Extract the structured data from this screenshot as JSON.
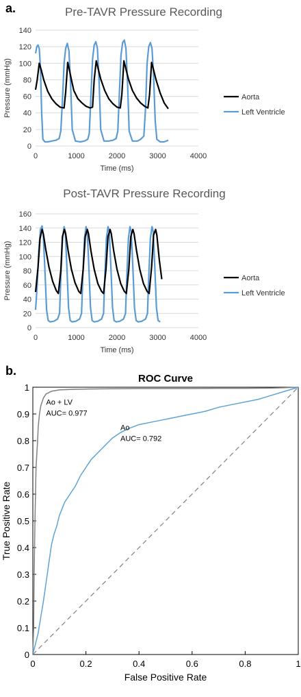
{
  "panels": {
    "a_label": "a.",
    "b_label": "b."
  },
  "colors": {
    "aorta": "#000000",
    "lv": "#5b9bd5",
    "roc_combined": "#808080",
    "roc_ao": "#5ba3d9",
    "grid": "#d9d9d9"
  },
  "chart_data": [
    {
      "type": "line",
      "title": "Pre-TAVR Pressure Recording",
      "xlabel": "Time (ms)",
      "ylabel": "Pressure (mmHg)",
      "xlim": [
        0,
        4000
      ],
      "ylim": [
        0,
        140
      ],
      "xticks": [
        "0",
        "1000",
        "2000",
        "3000",
        "4000"
      ],
      "yticks": [
        "0",
        "20",
        "40",
        "60",
        "80",
        "100",
        "120",
        "140"
      ],
      "grid": true,
      "legend": "right",
      "series": [
        {
          "name": "Aorta",
          "color": "#000000",
          "x": [
            0,
            40,
            90,
            140,
            200,
            300,
            400,
            500,
            600,
            700,
            740,
            790,
            830,
            880,
            940,
            1040,
            1140,
            1240,
            1340,
            1400,
            1440,
            1490,
            1540,
            1600,
            1700,
            1800,
            1900,
            2000,
            2080,
            2120,
            2170,
            2220,
            2280,
            2380,
            2480,
            2580,
            2680,
            2760,
            2800,
            2850,
            2900,
            2960,
            3060,
            3160,
            3260
          ],
          "y": [
            68,
            80,
            100,
            92,
            80,
            66,
            57,
            51,
            47,
            46,
            65,
            101,
            92,
            80,
            67,
            57,
            52,
            48,
            46,
            47,
            80,
            103,
            93,
            81,
            67,
            57,
            51,
            47,
            46,
            62,
            103,
            93,
            81,
            67,
            58,
            52,
            48,
            46,
            62,
            101,
            92,
            80,
            64,
            52,
            45
          ]
        },
        {
          "name": "Left Ventricle",
          "color": "#5b9bd5",
          "x": [
            0,
            30,
            60,
            90,
            120,
            150,
            180,
            230,
            300,
            400,
            500,
            580,
            620,
            660,
            700,
            740,
            780,
            820,
            860,
            900,
            980,
            1100,
            1200,
            1280,
            1320,
            1360,
            1400,
            1440,
            1480,
            1520,
            1560,
            1600,
            1680,
            1800,
            1900,
            1980,
            2020,
            2060,
            2100,
            2140,
            2180,
            2220,
            2260,
            2300,
            2380,
            2500,
            2580,
            2660,
            2700,
            2740,
            2780,
            2820,
            2860,
            2900,
            2940,
            2980,
            3060,
            3160,
            3260
          ],
          "y": [
            112,
            120,
            122,
            118,
            95,
            40,
            8,
            5,
            5,
            6,
            7,
            9,
            18,
            55,
            100,
            118,
            124,
            115,
            75,
            20,
            6,
            5,
            6,
            8,
            15,
            60,
            105,
            122,
            126,
            118,
            80,
            20,
            6,
            6,
            7,
            9,
            18,
            65,
            110,
            125,
            128,
            118,
            75,
            18,
            6,
            6,
            8,
            12,
            45,
            100,
            120,
            125,
            118,
            85,
            30,
            8,
            5,
            5,
            7
          ]
        }
      ]
    },
    {
      "type": "line",
      "title": "Post-TAVR Pressure Recording",
      "xlabel": "Time (ms)",
      "ylabel": "Pressure (mmHg)",
      "xlim": [
        0,
        4000
      ],
      "ylim": [
        0,
        160
      ],
      "xticks": [
        "0",
        "1000",
        "2000",
        "3000",
        "4000"
      ],
      "yticks": [
        "0",
        "20",
        "40",
        "60",
        "80",
        "100",
        "120",
        "140",
        "160"
      ],
      "grid": true,
      "legend": "right",
      "series": [
        {
          "name": "Aorta",
          "color": "#000000",
          "x": [
            0,
            60,
            110,
            160,
            190,
            250,
            330,
            420,
            510,
            560,
            620,
            660,
            710,
            740,
            800,
            880,
            970,
            1060,
            1110,
            1170,
            1220,
            1270,
            1300,
            1360,
            1440,
            1530,
            1620,
            1670,
            1730,
            1780,
            1830,
            1860,
            1920,
            2000,
            2090,
            2180,
            2230,
            2290,
            2340,
            2390,
            2420,
            2480,
            2560,
            2650,
            2740,
            2790,
            2850,
            2900,
            2950,
            2980,
            3040,
            3100
          ],
          "y": [
            50,
            85,
            125,
            138,
            132,
            110,
            85,
            65,
            52,
            48,
            80,
            128,
            138,
            132,
            108,
            82,
            63,
            51,
            48,
            82,
            128,
            138,
            132,
            108,
            82,
            62,
            51,
            48,
            82,
            128,
            138,
            132,
            108,
            82,
            62,
            51,
            48,
            82,
            128,
            138,
            132,
            108,
            82,
            62,
            51,
            48,
            85,
            130,
            138,
            130,
            95,
            68
          ]
        },
        {
          "name": "Left Ventricle",
          "color": "#5b9bd5",
          "x": [
            0,
            40,
            80,
            120,
            160,
            190,
            230,
            270,
            310,
            360,
            450,
            540,
            590,
            620,
            660,
            700,
            730,
            770,
            810,
            850,
            900,
            990,
            1080,
            1130,
            1160,
            1200,
            1240,
            1270,
            1310,
            1350,
            1390,
            1440,
            1530,
            1620,
            1670,
            1700,
            1740,
            1780,
            1810,
            1850,
            1890,
            1930,
            1980,
            2070,
            2160,
            2210,
            2240,
            2280,
            2320,
            2350,
            2390,
            2430,
            2470,
            2520,
            2610,
            2700,
            2750,
            2780,
            2820,
            2860,
            2890,
            2930,
            2970,
            3010,
            3060
          ],
          "y": [
            25,
            60,
            110,
            138,
            143,
            130,
            80,
            25,
            10,
            8,
            9,
            12,
            20,
            70,
            125,
            142,
            135,
            85,
            28,
            10,
            8,
            9,
            12,
            20,
            70,
            125,
            142,
            135,
            85,
            28,
            10,
            8,
            9,
            12,
            20,
            70,
            125,
            142,
            135,
            85,
            28,
            10,
            8,
            9,
            12,
            20,
            70,
            125,
            142,
            135,
            85,
            28,
            10,
            8,
            9,
            12,
            20,
            70,
            125,
            142,
            135,
            85,
            28,
            10,
            8
          ]
        }
      ]
    },
    {
      "type": "line",
      "title": "ROC Curve",
      "xlabel": "False Positive Rate",
      "ylabel": "True Positive Rate",
      "xlim": [
        0,
        1
      ],
      "ylim": [
        0,
        1
      ],
      "xticks": [
        "0",
        "0.2",
        "0.4",
        "0.6",
        "0.8",
        "1"
      ],
      "yticks": [
        "0",
        "0.1",
        "0.2",
        "0.3",
        "0.4",
        "0.5",
        "0.6",
        "0.7",
        "0.8",
        "0.9",
        "1"
      ],
      "grid": false,
      "annotations": [
        {
          "lines": [
            "Ao + LV",
            "AUC= 0.977"
          ],
          "x": 0.05,
          "y": 0.935
        },
        {
          "lines": [
            "Ao",
            "AUC= 0.792"
          ],
          "x": 0.33,
          "y": 0.84
        }
      ],
      "series": [
        {
          "color": "#808080",
          "x": [
            0,
            0.003,
            0.005,
            0.008,
            0.01,
            0.012,
            0.015,
            0.018,
            0.02,
            0.025,
            0.03,
            0.04,
            0.05,
            0.07,
            0.1,
            0.15,
            0.2,
            0.3,
            0.4,
            0.5,
            0.6,
            0.7,
            0.8,
            0.9,
            0.95,
            1
          ],
          "y": [
            0,
            0.1,
            0.3,
            0.5,
            0.6,
            0.7,
            0.75,
            0.8,
            0.85,
            0.9,
            0.93,
            0.96,
            0.975,
            0.985,
            0.99,
            0.992,
            0.993,
            0.994,
            0.995,
            0.995,
            0.995,
            0.996,
            0.996,
            0.997,
            0.998,
            1
          ]
        },
        {
          "color": "#5ba3d9",
          "x": [
            0,
            0.005,
            0.01,
            0.02,
            0.03,
            0.04,
            0.05,
            0.06,
            0.07,
            0.08,
            0.09,
            0.1,
            0.12,
            0.14,
            0.16,
            0.18,
            0.2,
            0.22,
            0.25,
            0.28,
            0.3,
            0.33,
            0.36,
            0.4,
            0.45,
            0.5,
            0.55,
            0.6,
            0.65,
            0.7,
            0.75,
            0.8,
            0.85,
            0.9,
            0.95,
            1
          ],
          "y": [
            0,
            0.02,
            0.04,
            0.08,
            0.14,
            0.2,
            0.27,
            0.34,
            0.41,
            0.45,
            0.48,
            0.52,
            0.57,
            0.6,
            0.63,
            0.67,
            0.7,
            0.73,
            0.76,
            0.79,
            0.81,
            0.83,
            0.845,
            0.86,
            0.87,
            0.88,
            0.89,
            0.9,
            0.91,
            0.925,
            0.935,
            0.945,
            0.955,
            0.97,
            0.985,
            1
          ]
        },
        {
          "color": "#808080",
          "style": "dashed",
          "x": [
            0,
            1
          ],
          "y": [
            0,
            1
          ]
        }
      ]
    }
  ]
}
